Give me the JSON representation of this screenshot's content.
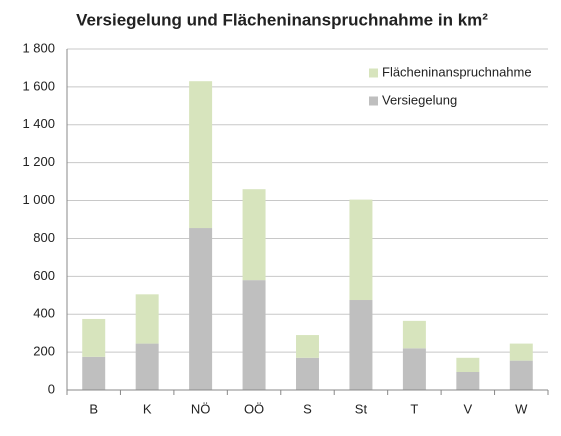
{
  "chart_data": {
    "type": "stacked-bar",
    "title": "Versiegelung und Flächeninanspruchnahme  in km²",
    "categories": [
      "B",
      "K",
      "NÖ",
      "OÖ",
      "S",
      "St",
      "T",
      "V",
      "W"
    ],
    "series": [
      {
        "name": "Versiegelung",
        "color": "#bfbfbf",
        "values": [
          175,
          245,
          855,
          580,
          170,
          475,
          220,
          95,
          155
        ]
      },
      {
        "name": "Flächeninanspruchnahme",
        "color": "#d7e4bd",
        "values": [
          200,
          260,
          775,
          480,
          120,
          530,
          145,
          75,
          90
        ]
      }
    ],
    "ylim": [
      0,
      1800
    ],
    "yticks": [
      0,
      200,
      400,
      600,
      800,
      {
        "value": 1000,
        "label": "1 000"
      },
      {
        "value": 1200,
        "label": "1 200"
      },
      {
        "value": 1400,
        "label": "1 400"
      },
      {
        "value": 1600,
        "label": "1 600"
      },
      {
        "value": 1800,
        "label": "1 800"
      }
    ],
    "grid": true
  }
}
